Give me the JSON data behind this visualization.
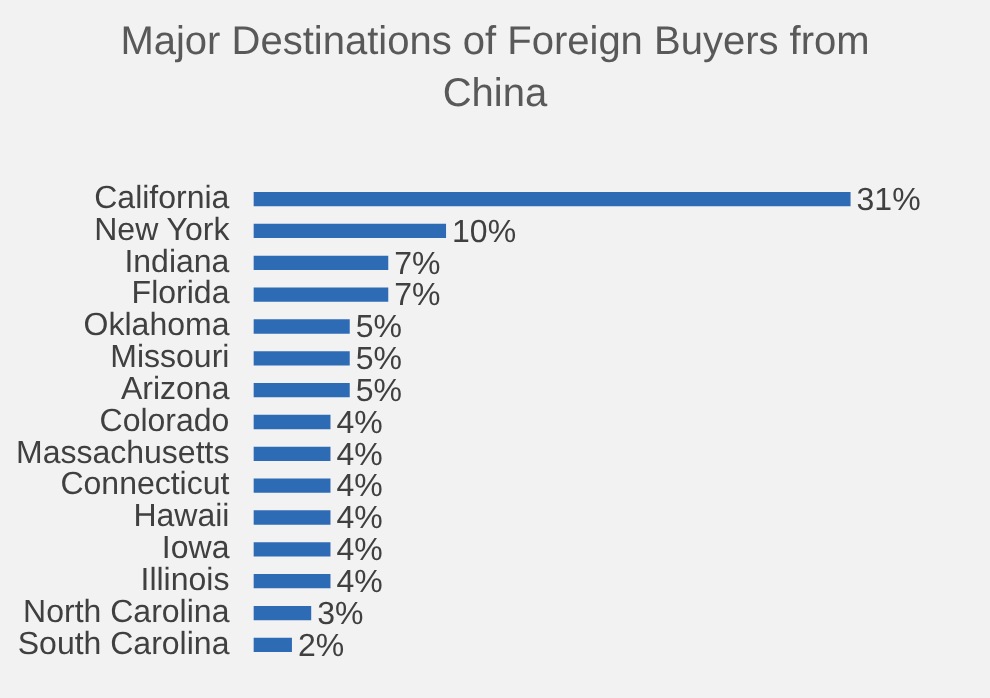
{
  "chart_data": {
    "type": "bar",
    "orientation": "horizontal",
    "tick_labels": "y",
    "title": "Major Destinations of Foreign Buyers from China",
    "categories": [
      "California",
      "New York",
      "Indiana",
      "Florida",
      "Oklahoma",
      "Missouri",
      "Arizona",
      "Colorado",
      "Massachusetts",
      "Connecticut",
      "Hawaii",
      "Iowa",
      "Illinois",
      "North Carolina",
      "South Carolina"
    ],
    "values": [
      31,
      10,
      7,
      7,
      5,
      5,
      5,
      4,
      4,
      4,
      4,
      4,
      4,
      3,
      2
    ],
    "value_labels": [
      "31%",
      "10%",
      "7%",
      "7%",
      "5%",
      "5%",
      "5%",
      "4%",
      "4%",
      "4%",
      "4%",
      "4%",
      "4%",
      "3%",
      "2%"
    ],
    "color": "#2e6bb5",
    "legend": false
  }
}
